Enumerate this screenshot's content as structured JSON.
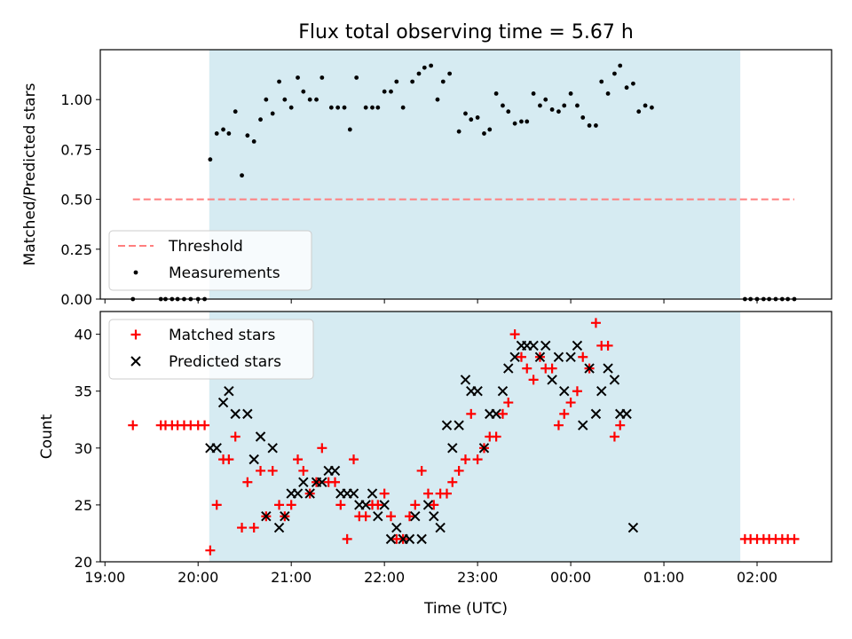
{
  "figure": {
    "title": "Flux total observing time = 5.67 h",
    "xlabel": "Time (UTC)"
  },
  "chart_data": [
    {
      "type": "scatter",
      "ylabel": "Matched/Predicted stars",
      "ylim": [
        0,
        1.25
      ],
      "yticks": [
        "0.00",
        "0.25",
        "0.50",
        "0.75",
        "1.00"
      ],
      "xticks": [
        "19:00",
        "20:00",
        "21:00",
        "22:00",
        "23:00",
        "00:00",
        "01:00",
        "02:00"
      ],
      "xlim_hours": [
        18.95,
        26.8
      ],
      "highlight_span_hours": [
        20.12,
        25.82
      ],
      "legend_position": "lower-left",
      "threshold": {
        "name": "Threshold",
        "value": 0.5,
        "x_range_hours": [
          19.3,
          26.4
        ],
        "color": "#ff7f7f",
        "style": "dashed"
      },
      "series": [
        {
          "name": "Measurements",
          "color": "#000000",
          "marker": "dot",
          "points": [
            [
              19.3,
              0
            ],
            [
              19.6,
              0
            ],
            [
              19.65,
              0
            ],
            [
              19.72,
              0
            ],
            [
              19.78,
              0
            ],
            [
              19.85,
              0
            ],
            [
              19.92,
              0
            ],
            [
              20.0,
              0
            ],
            [
              20.07,
              0
            ],
            [
              20.13,
              0.7
            ],
            [
              20.2,
              0.83
            ],
            [
              20.27,
              0.85
            ],
            [
              20.33,
              0.83
            ],
            [
              20.4,
              0.94
            ],
            [
              20.47,
              0.62
            ],
            [
              20.53,
              0.82
            ],
            [
              20.6,
              0.79
            ],
            [
              20.67,
              0.9
            ],
            [
              20.73,
              1.0
            ],
            [
              20.8,
              0.93
            ],
            [
              20.87,
              1.09
            ],
            [
              20.93,
              1.0
            ],
            [
              21.0,
              0.96
            ],
            [
              21.07,
              1.11
            ],
            [
              21.13,
              1.04
            ],
            [
              21.2,
              1.0
            ],
            [
              21.27,
              1.0
            ],
            [
              21.33,
              1.11
            ],
            [
              21.43,
              0.96
            ],
            [
              21.5,
              0.96
            ],
            [
              21.57,
              0.96
            ],
            [
              21.63,
              0.85
            ],
            [
              21.7,
              1.11
            ],
            [
              21.8,
              0.96
            ],
            [
              21.87,
              0.96
            ],
            [
              21.93,
              0.96
            ],
            [
              22.0,
              1.04
            ],
            [
              22.07,
              1.04
            ],
            [
              22.13,
              1.09
            ],
            [
              22.2,
              0.96
            ],
            [
              22.3,
              1.09
            ],
            [
              22.37,
              1.13
            ],
            [
              22.43,
              1.16
            ],
            [
              22.5,
              1.17
            ],
            [
              22.57,
              1.0
            ],
            [
              22.63,
              1.09
            ],
            [
              22.7,
              1.13
            ],
            [
              22.8,
              0.84
            ],
            [
              22.87,
              0.93
            ],
            [
              22.93,
              0.9
            ],
            [
              23.0,
              0.91
            ],
            [
              23.07,
              0.83
            ],
            [
              23.13,
              0.85
            ],
            [
              23.2,
              1.03
            ],
            [
              23.27,
              0.97
            ],
            [
              23.33,
              0.94
            ],
            [
              23.4,
              0.88
            ],
            [
              23.47,
              0.89
            ],
            [
              23.53,
              0.89
            ],
            [
              23.6,
              1.03
            ],
            [
              23.67,
              0.97
            ],
            [
              23.73,
              1.0
            ],
            [
              23.8,
              0.95
            ],
            [
              23.87,
              0.94
            ],
            [
              23.93,
              0.97
            ],
            [
              24.0,
              1.03
            ],
            [
              24.07,
              0.97
            ],
            [
              24.13,
              0.91
            ],
            [
              24.2,
              0.87
            ],
            [
              24.27,
              0.87
            ],
            [
              24.33,
              1.09
            ],
            [
              24.4,
              1.03
            ],
            [
              24.47,
              1.13
            ],
            [
              24.53,
              1.17
            ],
            [
              24.6,
              1.06
            ],
            [
              24.67,
              1.08
            ],
            [
              24.73,
              0.94
            ],
            [
              24.8,
              0.97
            ],
            [
              24.87,
              0.96
            ],
            [
              25.87,
              0
            ],
            [
              25.93,
              0
            ],
            [
              26.0,
              0
            ],
            [
              26.07,
              0
            ],
            [
              26.13,
              0
            ],
            [
              26.2,
              0
            ],
            [
              26.27,
              0
            ],
            [
              26.33,
              0
            ],
            [
              26.4,
              0
            ]
          ]
        }
      ]
    },
    {
      "type": "scatter",
      "ylabel": "Count",
      "ylim": [
        20,
        42
      ],
      "yticks": [
        "20",
        "25",
        "30",
        "35",
        "40"
      ],
      "xticks": [
        "19:00",
        "20:00",
        "21:00",
        "22:00",
        "23:00",
        "00:00",
        "01:00",
        "02:00"
      ],
      "xlim_hours": [
        18.95,
        26.8
      ],
      "highlight_span_hours": [
        20.12,
        25.82
      ],
      "legend_position": "upper-left",
      "series": [
        {
          "name": "Matched stars",
          "color": "#ff0000",
          "marker": "plus",
          "points": [
            [
              19.3,
              32
            ],
            [
              19.6,
              32
            ],
            [
              19.65,
              32
            ],
            [
              19.72,
              32
            ],
            [
              19.78,
              32
            ],
            [
              19.85,
              32
            ],
            [
              19.92,
              32
            ],
            [
              20.0,
              32
            ],
            [
              20.07,
              32
            ],
            [
              20.13,
              21
            ],
            [
              20.2,
              25
            ],
            [
              20.27,
              29
            ],
            [
              20.33,
              29
            ],
            [
              20.4,
              31
            ],
            [
              20.47,
              23
            ],
            [
              20.53,
              27
            ],
            [
              20.6,
              23
            ],
            [
              20.67,
              28
            ],
            [
              20.73,
              24
            ],
            [
              20.8,
              28
            ],
            [
              20.87,
              25
            ],
            [
              20.93,
              24
            ],
            [
              21.0,
              25
            ],
            [
              21.07,
              29
            ],
            [
              21.13,
              28
            ],
            [
              21.2,
              26
            ],
            [
              21.27,
              27
            ],
            [
              21.33,
              30
            ],
            [
              21.4,
              27
            ],
            [
              21.47,
              27
            ],
            [
              21.53,
              25
            ],
            [
              21.6,
              22
            ],
            [
              21.67,
              29
            ],
            [
              21.73,
              24
            ],
            [
              21.8,
              24
            ],
            [
              21.87,
              25
            ],
            [
              21.93,
              25
            ],
            [
              22.0,
              26
            ],
            [
              22.07,
              24
            ],
            [
              22.13,
              22
            ],
            [
              22.2,
              22
            ],
            [
              22.27,
              24
            ],
            [
              22.33,
              25
            ],
            [
              22.4,
              28
            ],
            [
              22.47,
              26
            ],
            [
              22.53,
              25
            ],
            [
              22.6,
              26
            ],
            [
              22.67,
              26
            ],
            [
              22.73,
              27
            ],
            [
              22.8,
              28
            ],
            [
              22.87,
              29
            ],
            [
              22.93,
              33
            ],
            [
              23.0,
              29
            ],
            [
              23.07,
              30
            ],
            [
              23.13,
              31
            ],
            [
              23.2,
              31
            ],
            [
              23.27,
              33
            ],
            [
              23.33,
              34
            ],
            [
              23.4,
              40
            ],
            [
              23.47,
              38
            ],
            [
              23.53,
              37
            ],
            [
              23.6,
              36
            ],
            [
              23.67,
              38
            ],
            [
              23.73,
              37
            ],
            [
              23.8,
              37
            ],
            [
              23.87,
              32
            ],
            [
              23.93,
              33
            ],
            [
              24.0,
              34
            ],
            [
              24.07,
              35
            ],
            [
              24.13,
              38
            ],
            [
              24.2,
              37
            ],
            [
              24.27,
              41
            ],
            [
              24.33,
              39
            ],
            [
              24.4,
              39
            ],
            [
              24.47,
              31
            ],
            [
              24.53,
              32
            ],
            [
              25.87,
              22
            ],
            [
              25.93,
              22
            ],
            [
              26.0,
              22
            ],
            [
              26.07,
              22
            ],
            [
              26.13,
              22
            ],
            [
              26.2,
              22
            ],
            [
              26.27,
              22
            ],
            [
              26.33,
              22
            ],
            [
              26.4,
              22
            ]
          ]
        },
        {
          "name": "Predicted stars",
          "color": "#000000",
          "marker": "x",
          "points": [
            [
              20.13,
              30
            ],
            [
              20.2,
              30
            ],
            [
              20.27,
              34
            ],
            [
              20.33,
              35
            ],
            [
              20.4,
              33
            ],
            [
              20.53,
              33
            ],
            [
              20.6,
              29
            ],
            [
              20.67,
              31
            ],
            [
              20.73,
              24
            ],
            [
              20.8,
              30
            ],
            [
              20.87,
              23
            ],
            [
              20.93,
              24
            ],
            [
              21.0,
              26
            ],
            [
              21.07,
              26
            ],
            [
              21.13,
              27
            ],
            [
              21.2,
              26
            ],
            [
              21.27,
              27
            ],
            [
              21.33,
              27
            ],
            [
              21.4,
              28
            ],
            [
              21.47,
              28
            ],
            [
              21.53,
              26
            ],
            [
              21.6,
              26
            ],
            [
              21.67,
              26
            ],
            [
              21.73,
              25
            ],
            [
              21.8,
              25
            ],
            [
              21.87,
              26
            ],
            [
              21.93,
              24
            ],
            [
              22.0,
              25
            ],
            [
              22.07,
              22
            ],
            [
              22.13,
              23
            ],
            [
              22.2,
              22
            ],
            [
              22.27,
              22
            ],
            [
              22.33,
              24
            ],
            [
              22.4,
              22
            ],
            [
              22.47,
              25
            ],
            [
              22.53,
              24
            ],
            [
              22.6,
              23
            ],
            [
              22.67,
              32
            ],
            [
              22.73,
              30
            ],
            [
              22.8,
              32
            ],
            [
              22.87,
              36
            ],
            [
              22.93,
              35
            ],
            [
              23.0,
              35
            ],
            [
              23.07,
              30
            ],
            [
              23.13,
              33
            ],
            [
              23.2,
              33
            ],
            [
              23.27,
              35
            ],
            [
              23.33,
              37
            ],
            [
              23.4,
              38
            ],
            [
              23.47,
              39
            ],
            [
              23.53,
              39
            ],
            [
              23.6,
              39
            ],
            [
              23.67,
              38
            ],
            [
              23.73,
              39
            ],
            [
              23.8,
              36
            ],
            [
              23.87,
              38
            ],
            [
              23.93,
              35
            ],
            [
              24.0,
              38
            ],
            [
              24.07,
              39
            ],
            [
              24.13,
              32
            ],
            [
              24.2,
              37
            ],
            [
              24.27,
              33
            ],
            [
              24.33,
              35
            ],
            [
              24.4,
              37
            ],
            [
              24.47,
              36
            ],
            [
              24.53,
              33
            ],
            [
              24.6,
              33
            ],
            [
              24.67,
              23
            ]
          ]
        }
      ]
    }
  ]
}
